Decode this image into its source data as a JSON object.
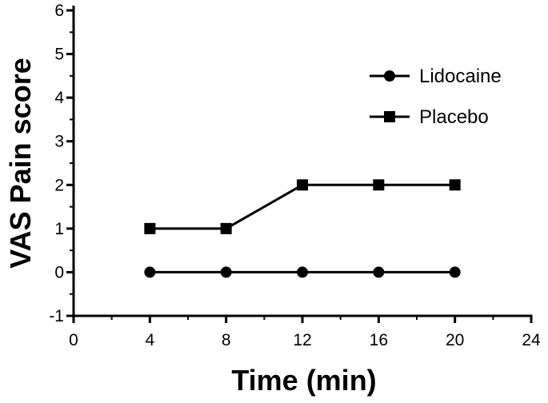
{
  "chart_data": {
    "type": "line",
    "title": "",
    "xlabel": "Time (min)",
    "ylabel": "VAS Pain score",
    "xlim": [
      0,
      24
    ],
    "ylim": [
      -1,
      6
    ],
    "x_ticks": [
      0,
      4,
      8,
      12,
      16,
      20,
      24
    ],
    "y_ticks": [
      -1,
      0,
      1,
      2,
      3,
      4,
      5,
      6
    ],
    "grid": false,
    "legend_position": "top-right",
    "x": [
      4,
      8,
      12,
      16,
      20
    ],
    "series": [
      {
        "name": "Lidocaine",
        "marker": "circle",
        "color": "#000000",
        "values": [
          0,
          0,
          0,
          0,
          0
        ]
      },
      {
        "name": "Placebo",
        "marker": "square",
        "color": "#000000",
        "values": [
          1,
          1,
          2,
          2,
          2
        ]
      }
    ]
  }
}
